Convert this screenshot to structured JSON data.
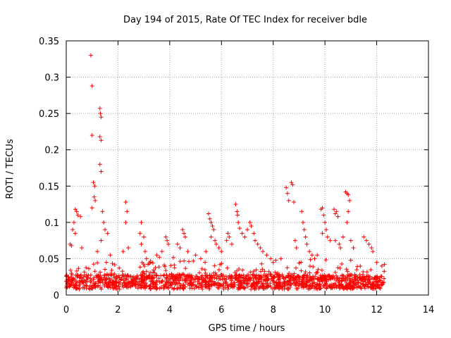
{
  "chart_data": {
    "type": "scatter",
    "title": "Day 194 of 2015, Rate Of TEC Index for receiver bdle",
    "xlabel": "GPS time / hours",
    "ylabel": "ROTI / TECUs",
    "xlim": [
      0,
      14
    ],
    "ylim": [
      0,
      0.35
    ],
    "xticks": [
      0,
      2,
      4,
      6,
      8,
      10,
      12,
      14
    ],
    "xtick_labels": [
      "0",
      "2",
      "4",
      "6",
      "8",
      "10",
      "12",
      "14"
    ],
    "yticks": [
      0,
      0.05,
      0.1,
      0.15,
      0.2,
      0.25,
      0.3,
      0.35
    ],
    "ytick_labels": [
      "0",
      "0.05",
      "0.1",
      "0.15",
      "0.2",
      "0.25",
      "0.3",
      "0.35"
    ],
    "grid": true,
    "marker": "+",
    "marker_color": "#ff0000",
    "series": [
      {
        "name": "ROTI",
        "points": [
          [
            0.95,
            0.33
          ],
          [
            1.0,
            0.288
          ],
          [
            1.3,
            0.257
          ],
          [
            1.32,
            0.25
          ],
          [
            1.35,
            0.245
          ],
          [
            1.0,
            0.22
          ],
          [
            1.3,
            0.218
          ],
          [
            1.35,
            0.213
          ],
          [
            1.3,
            0.18
          ],
          [
            1.35,
            0.17
          ],
          [
            1.05,
            0.155
          ],
          [
            1.1,
            0.15
          ],
          [
            1.08,
            0.135
          ],
          [
            1.12,
            0.13
          ],
          [
            1.0,
            0.12
          ],
          [
            0.35,
            0.118
          ],
          [
            0.4,
            0.115
          ],
          [
            0.45,
            0.11
          ],
          [
            0.3,
            0.1
          ],
          [
            0.55,
            0.108
          ],
          [
            0.25,
            0.09
          ],
          [
            0.35,
            0.085
          ],
          [
            0.15,
            0.07
          ],
          [
            0.2,
            0.068
          ],
          [
            0.6,
            0.065
          ],
          [
            1.4,
            0.115
          ],
          [
            1.45,
            0.1
          ],
          [
            1.5,
            0.09
          ],
          [
            1.6,
            0.085
          ],
          [
            1.35,
            0.075
          ],
          [
            1.7,
            0.055
          ],
          [
            1.55,
            0.045
          ],
          [
            1.2,
            0.06
          ],
          [
            2.3,
            0.128
          ],
          [
            2.35,
            0.115
          ],
          [
            2.3,
            0.1
          ],
          [
            2.2,
            0.06
          ],
          [
            2.4,
            0.065
          ],
          [
            2.9,
            0.1
          ],
          [
            2.85,
            0.085
          ],
          [
            3.0,
            0.08
          ],
          [
            2.9,
            0.07
          ],
          [
            3.05,
            0.06
          ],
          [
            3.1,
            0.05
          ],
          [
            3.5,
            0.055
          ],
          [
            3.6,
            0.052
          ],
          [
            3.7,
            0.06
          ],
          [
            3.85,
            0.08
          ],
          [
            3.9,
            0.075
          ],
          [
            3.95,
            0.07
          ],
          [
            4.3,
            0.07
          ],
          [
            4.5,
            0.09
          ],
          [
            4.55,
            0.085
          ],
          [
            4.6,
            0.08
          ],
          [
            4.4,
            0.065
          ],
          [
            4.7,
            0.06
          ],
          [
            5.0,
            0.055
          ],
          [
            5.2,
            0.05
          ],
          [
            5.4,
            0.06
          ],
          [
            5.5,
            0.112
          ],
          [
            5.55,
            0.105
          ],
          [
            5.6,
            0.1
          ],
          [
            5.65,
            0.095
          ],
          [
            5.7,
            0.09
          ],
          [
            5.6,
            0.08
          ],
          [
            5.75,
            0.075
          ],
          [
            5.8,
            0.07
          ],
          [
            5.9,
            0.065
          ],
          [
            6.0,
            0.06
          ],
          [
            6.2,
            0.075
          ],
          [
            6.25,
            0.085
          ],
          [
            6.3,
            0.08
          ],
          [
            6.4,
            0.07
          ],
          [
            6.55,
            0.125
          ],
          [
            6.6,
            0.115
          ],
          [
            6.62,
            0.11
          ],
          [
            6.65,
            0.1
          ],
          [
            6.7,
            0.092
          ],
          [
            6.8,
            0.085
          ],
          [
            6.9,
            0.08
          ],
          [
            7.0,
            0.09
          ],
          [
            7.1,
            0.1
          ],
          [
            7.15,
            0.095
          ],
          [
            7.25,
            0.085
          ],
          [
            7.3,
            0.075
          ],
          [
            7.4,
            0.07
          ],
          [
            7.5,
            0.065
          ],
          [
            7.6,
            0.06
          ],
          [
            7.75,
            0.055
          ],
          [
            7.9,
            0.05
          ],
          [
            8.0,
            0.045
          ],
          [
            8.1,
            0.048
          ],
          [
            8.3,
            0.05
          ],
          [
            8.5,
            0.148
          ],
          [
            8.55,
            0.14
          ],
          [
            8.6,
            0.13
          ],
          [
            8.7,
            0.155
          ],
          [
            8.75,
            0.152
          ],
          [
            8.8,
            0.128
          ],
          [
            8.85,
            0.075
          ],
          [
            8.9,
            0.065
          ],
          [
            9.1,
            0.115
          ],
          [
            9.15,
            0.1
          ],
          [
            9.2,
            0.09
          ],
          [
            9.25,
            0.08
          ],
          [
            9.3,
            0.07
          ],
          [
            9.4,
            0.06
          ],
          [
            9.5,
            0.055
          ],
          [
            9.6,
            0.05
          ],
          [
            9.7,
            0.055
          ],
          [
            9.85,
            0.118
          ],
          [
            9.9,
            0.12
          ],
          [
            9.95,
            0.11
          ],
          [
            10.0,
            0.1
          ],
          [
            10.05,
            0.09
          ],
          [
            9.9,
            0.085
          ],
          [
            10.1,
            0.08
          ],
          [
            10.2,
            0.075
          ],
          [
            10.35,
            0.118
          ],
          [
            10.4,
            0.112
          ],
          [
            10.45,
            0.115
          ],
          [
            10.5,
            0.108
          ],
          [
            10.4,
            0.075
          ],
          [
            10.55,
            0.07
          ],
          [
            10.6,
            0.065
          ],
          [
            10.8,
            0.142
          ],
          [
            10.85,
            0.14
          ],
          [
            10.9,
            0.138
          ],
          [
            10.95,
            0.13
          ],
          [
            10.9,
            0.115
          ],
          [
            10.85,
            0.1
          ],
          [
            10.7,
            0.08
          ],
          [
            11.0,
            0.075
          ],
          [
            11.1,
            0.065
          ],
          [
            11.5,
            0.08
          ],
          [
            11.6,
            0.075
          ],
          [
            11.7,
            0.07
          ],
          [
            11.8,
            0.065
          ],
          [
            11.85,
            0.06
          ],
          [
            12.0,
            0.045
          ],
          [
            12.2,
            0.04
          ],
          [
            12.3,
            0.042
          ]
        ]
      }
    ]
  }
}
